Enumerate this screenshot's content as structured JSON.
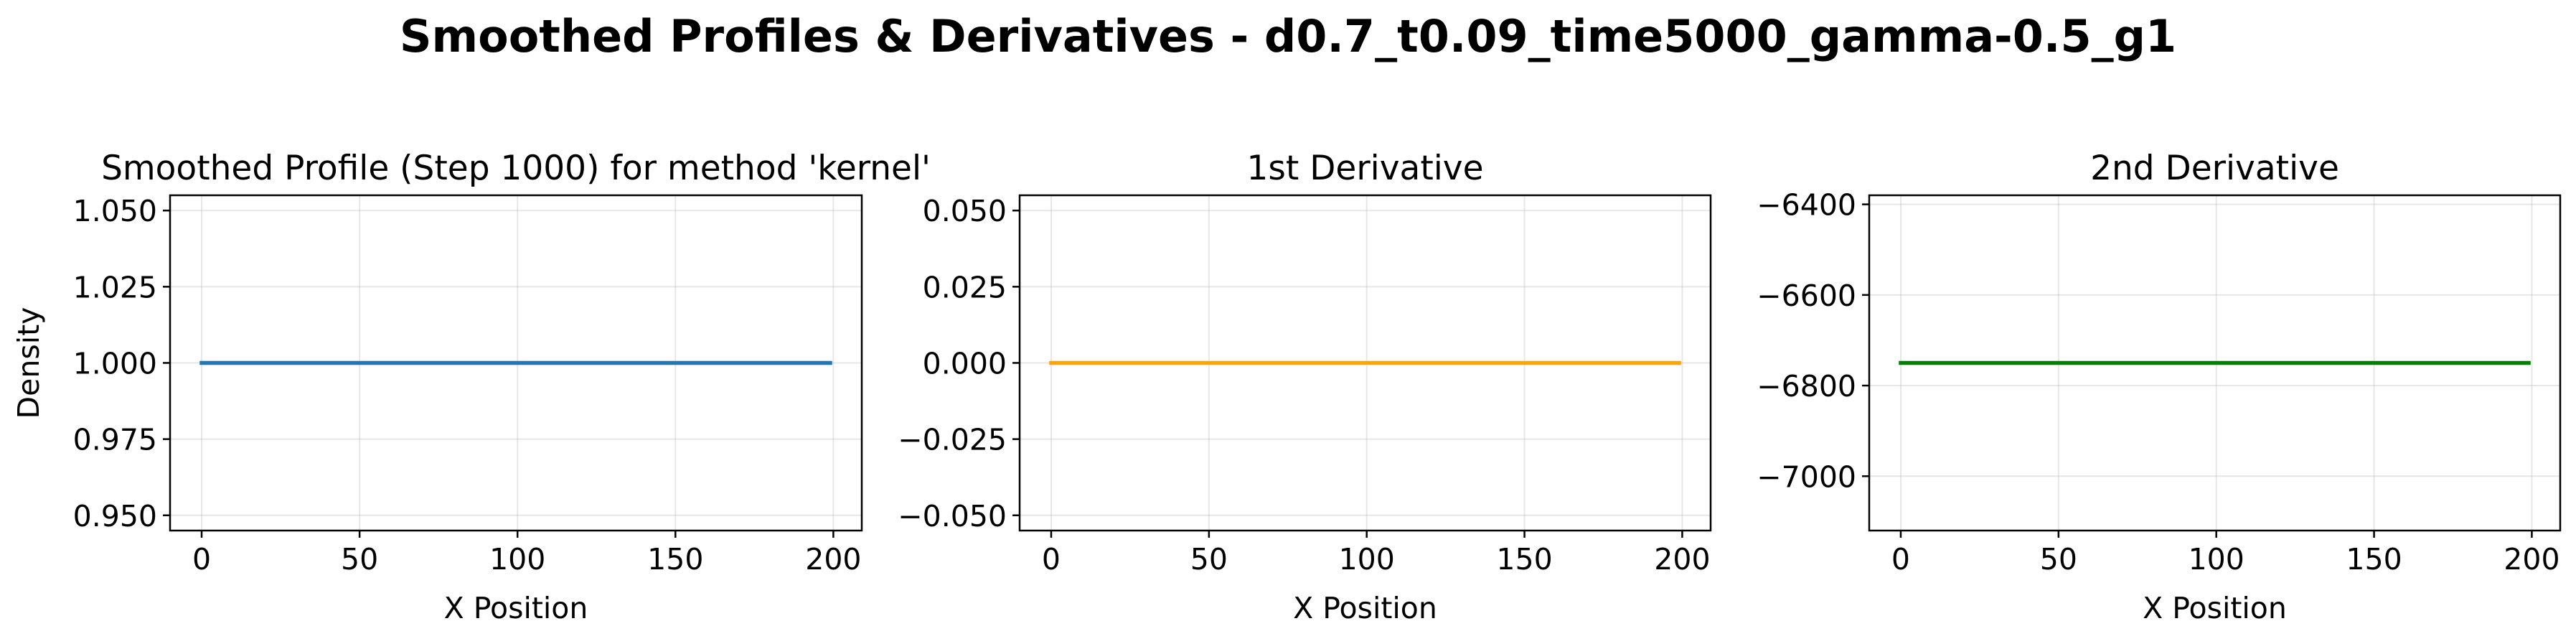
{
  "figure": {
    "suptitle": "Smoothed Profiles & Derivatives - d0.7_t0.09_time5000_gamma-0.5_g1"
  },
  "chart_data": [
    {
      "type": "line",
      "title": "Smoothed Profile (Step 1000) for method 'kernel'",
      "xlabel": "X Position",
      "ylabel": "Density",
      "xlim": [
        -10,
        209
      ],
      "ylim": [
        0.945,
        1.055
      ],
      "xticks": [
        0,
        50,
        100,
        150,
        200
      ],
      "xtick_labels": [
        "0",
        "50",
        "100",
        "150",
        "200"
      ],
      "yticks": [
        0.95,
        0.975,
        1.0,
        1.025,
        1.05
      ],
      "ytick_labels": [
        "0.950",
        "0.975",
        "1.000",
        "1.025",
        "1.050"
      ],
      "grid": true,
      "series": [
        {
          "color": "#1f77b4",
          "x": [
            0,
            199
          ],
          "y": [
            1.0,
            1.0
          ]
        }
      ]
    },
    {
      "type": "line",
      "title": "1st Derivative",
      "xlabel": "X Position",
      "ylabel": "",
      "xlim": [
        -10,
        209
      ],
      "ylim": [
        -0.055,
        0.055
      ],
      "xticks": [
        0,
        50,
        100,
        150,
        200
      ],
      "xtick_labels": [
        "0",
        "50",
        "100",
        "150",
        "200"
      ],
      "yticks": [
        -0.05,
        -0.025,
        0.0,
        0.025,
        0.05
      ],
      "ytick_labels": [
        "−0.050",
        "−0.025",
        "0.000",
        "0.025",
        "0.050"
      ],
      "grid": true,
      "series": [
        {
          "color": "#ffa500",
          "x": [
            0,
            199
          ],
          "y": [
            0.0,
            0.0
          ]
        }
      ]
    },
    {
      "type": "line",
      "title": "2nd Derivative",
      "xlabel": "X Position",
      "ylabel": "",
      "xlim": [
        -10,
        209
      ],
      "ylim": [
        -7120,
        -6380
      ],
      "xticks": [
        0,
        50,
        100,
        150,
        200
      ],
      "xtick_labels": [
        "0",
        "50",
        "100",
        "150",
        "200"
      ],
      "yticks": [
        -7000,
        -6800,
        -6600,
        -6400
      ],
      "ytick_labels": [
        "−7000",
        "−6800",
        "−6600",
        "−6400"
      ],
      "grid": true,
      "series": [
        {
          "color": "#008000",
          "x": [
            0,
            199
          ],
          "y": [
            -6750,
            -6750
          ]
        }
      ]
    }
  ]
}
